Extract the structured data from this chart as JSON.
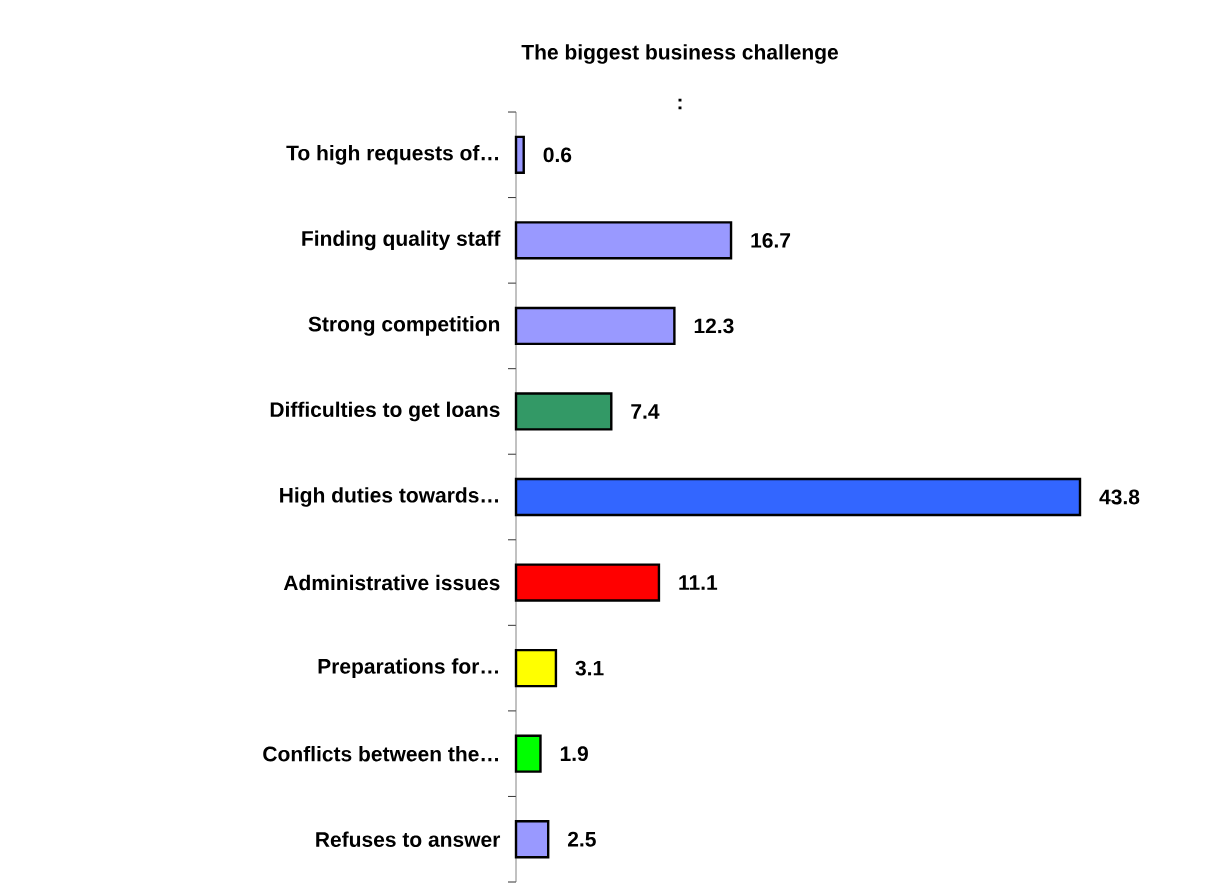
{
  "chart_data": {
    "type": "bar",
    "orientation": "horizontal",
    "title": "The biggest business challenge",
    "subtitle": ":",
    "categories": [
      "To high requests of…",
      "Finding quality staff",
      "Strong competition",
      "Difficulties to get loans",
      "High duties towards…",
      "Administrative issues",
      "Preparations for…",
      "Conflicts between the…",
      "Refuses to answer"
    ],
    "values": [
      0.6,
      16.7,
      12.3,
      7.4,
      43.8,
      11.1,
      3.1,
      1.9,
      2.5
    ],
    "colors": [
      "#9999ff",
      "#9999ff",
      "#9999ff",
      "#339966",
      "#3366ff",
      "#ff0000",
      "#ffff00",
      "#00ff00",
      "#9999ff"
    ],
    "data_labels": true
  }
}
